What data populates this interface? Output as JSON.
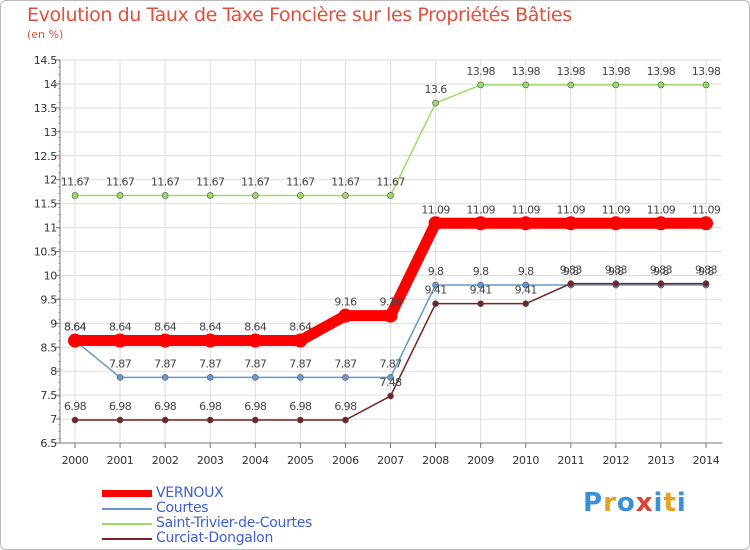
{
  "header": {
    "title": "Evolution du Taux de Taxe Foncière sur les Propriétés Bâties",
    "unit": "(en %)"
  },
  "logo": {
    "text": "Proxiti",
    "letter_colors": [
      "#3a8fd8",
      "#e8a020",
      "#3a8fd8",
      "#e04030",
      "#3a8fd8",
      "#e8a020",
      "#3a8fd8"
    ]
  },
  "chart_data": {
    "type": "line",
    "title": "Evolution du Taux de Taxe Foncière sur les Propriétés Bâties",
    "ylabel": "(en %)",
    "xlabel": "",
    "ylim": [
      6.5,
      14.5
    ],
    "yticks": [
      "6.5",
      "7",
      "7.5",
      "8",
      "8.5",
      "9",
      "9.5",
      "10",
      "10.5",
      "11",
      "11.5",
      "12",
      "12.5",
      "13",
      "13.5",
      "14",
      "14.5"
    ],
    "categories": [
      "2000",
      "2001",
      "2002",
      "2003",
      "2004",
      "2005",
      "2006",
      "2007",
      "2008",
      "2009",
      "2010",
      "2011",
      "2012",
      "2013",
      "2014"
    ],
    "grid": true,
    "series": [
      {
        "name": "Saint-Trivier-de-Courtes",
        "color": "#99dd66",
        "values": [
          11.67,
          11.67,
          11.67,
          11.67,
          11.67,
          11.67,
          11.67,
          11.67,
          13.6,
          13.98,
          13.98,
          13.98,
          13.98,
          13.98,
          13.98
        ],
        "labels": [
          "11.67",
          "11.67",
          "11.67",
          "11.67",
          "11.67",
          "11.67",
          "11.67",
          "11.67",
          "13.6",
          "13.98",
          "13.98",
          "13.98",
          "13.98",
          "13.98",
          "13.98"
        ]
      },
      {
        "name": "Courtes",
        "color": "#6699cc",
        "values": [
          8.64,
          7.87,
          7.87,
          7.87,
          7.87,
          7.87,
          7.87,
          7.87,
          9.8,
          9.8,
          9.8,
          9.8,
          9.8,
          9.8,
          9.8
        ],
        "labels": [
          "8.64",
          "7.87",
          "7.87",
          "7.87",
          "7.87",
          "7.87",
          "7.87",
          "7.87",
          "9.8",
          "9.8",
          "9.8",
          "9.8",
          "9.8",
          "9.8",
          "9.8"
        ]
      },
      {
        "name": "Curciat-Dongalon",
        "color": "#772222",
        "values": [
          6.98,
          6.98,
          6.98,
          6.98,
          6.98,
          6.98,
          6.98,
          7.48,
          9.41,
          9.41,
          9.41,
          9.83,
          9.83,
          9.83,
          9.83
        ],
        "labels": [
          "6.98",
          "6.98",
          "6.98",
          "6.98",
          "6.98",
          "6.98",
          "6.98",
          "7.48",
          "9.41",
          "9.41",
          "9.41",
          "9.83",
          "9.83",
          "9.83",
          "9.83"
        ]
      },
      {
        "name": "VERNOUX",
        "color": "#ff0000",
        "values": [
          8.64,
          8.64,
          8.64,
          8.64,
          8.64,
          8.64,
          9.16,
          9.16,
          11.09,
          11.09,
          11.09,
          11.09,
          11.09,
          11.09,
          11.09
        ],
        "labels": [
          "8.64",
          "8.64",
          "8.64",
          "8.64",
          "8.64",
          "8.64",
          "9.16",
          "9.16",
          "11.09",
          "11.09",
          "11.09",
          "11.09",
          "11.09",
          "11.09",
          "11.09"
        ]
      }
    ],
    "legend": [
      "VERNOUX",
      "Courtes",
      "Saint-Trivier-de-Courtes",
      "Curciat-Dongalon"
    ],
    "legend_position": "bottom-left"
  }
}
